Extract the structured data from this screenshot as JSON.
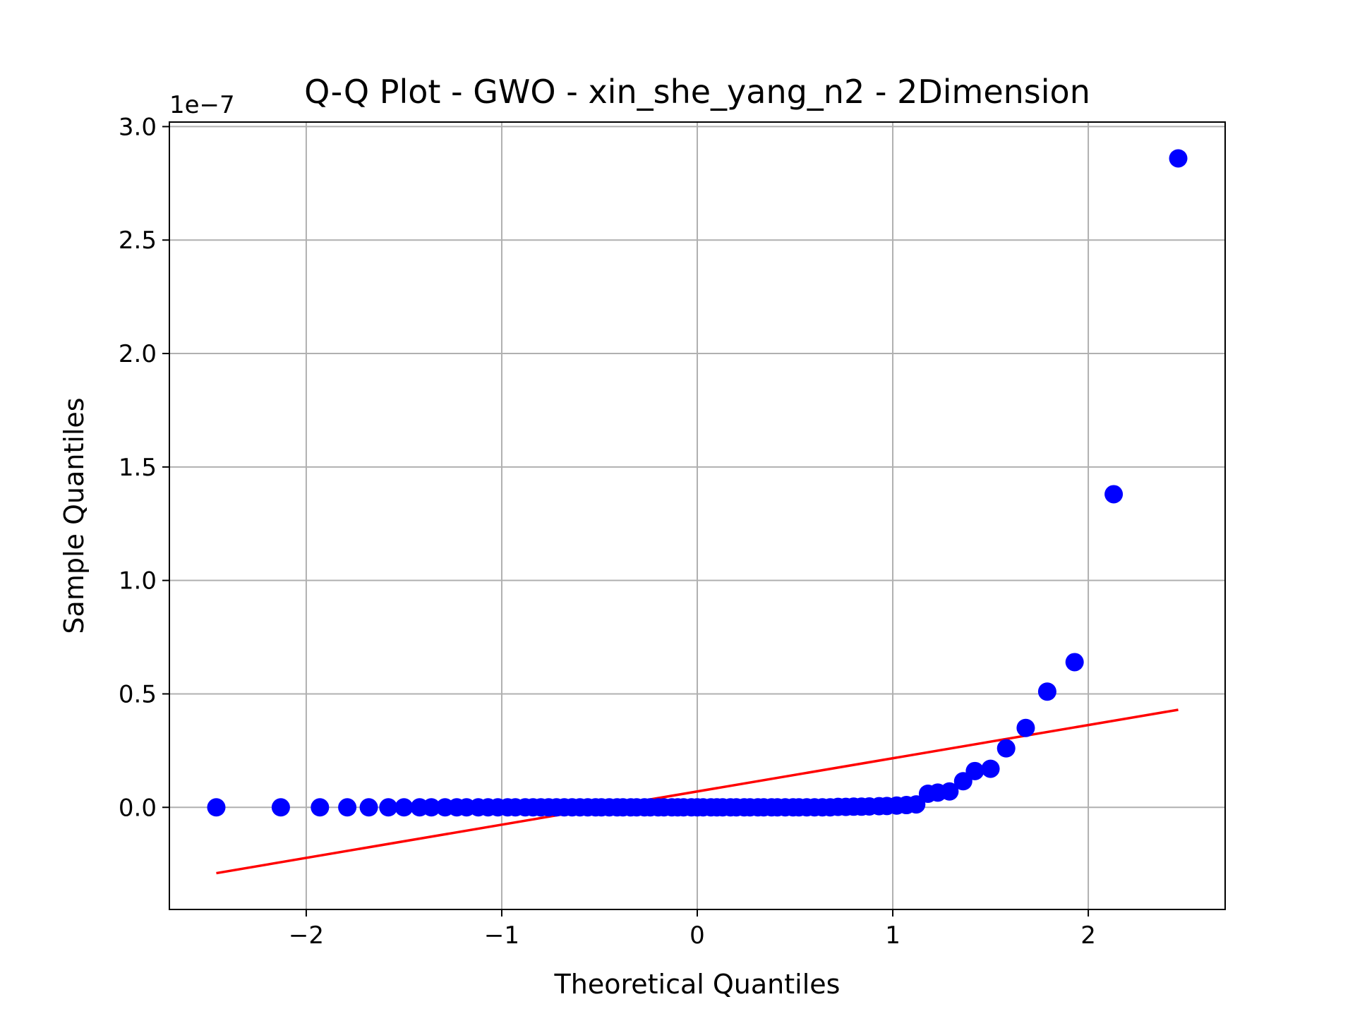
{
  "chart_data": {
    "type": "scatter",
    "title": "Q-Q Plot - GWO - xin_she_yang_n2 - 2Dimension",
    "xlabel": "Theoretical Quantiles",
    "ylabel": "Sample Quantiles",
    "y_offset_label": "1e−7",
    "xlim": [
      -2.7,
      2.7
    ],
    "ylim": [
      -0.45,
      3.02
    ],
    "x_ticks": [
      -2,
      -1,
      0,
      1,
      2
    ],
    "x_tick_labels": [
      "−2",
      "−1",
      "0",
      "1",
      "2"
    ],
    "y_ticks": [
      0.0,
      0.5,
      1.0,
      1.5,
      2.0,
      2.5,
      3.0
    ],
    "y_tick_labels": [
      "0.0",
      "0.5",
      "1.0",
      "1.5",
      "2.0",
      "2.5",
      "3.0"
    ],
    "grid": true,
    "marker_color": "#0000ff",
    "line_color": "#ff0000",
    "points": [
      [
        -2.46,
        0.0
      ],
      [
        -2.13,
        0.0
      ],
      [
        -1.93,
        0.0
      ],
      [
        -1.79,
        0.0
      ],
      [
        -1.68,
        0.0
      ],
      [
        -1.58,
        0.0
      ],
      [
        -1.5,
        0.0
      ],
      [
        -1.42,
        0.0
      ],
      [
        -1.36,
        0.0
      ],
      [
        -1.29,
        0.0
      ],
      [
        -1.23,
        0.0
      ],
      [
        -1.18,
        0.0
      ],
      [
        -1.12,
        0.0
      ],
      [
        -1.07,
        0.0
      ],
      [
        -1.02,
        0.0
      ],
      [
        -0.97,
        0.0
      ],
      [
        -0.93,
        0.0
      ],
      [
        -0.88,
        0.0
      ],
      [
        -0.84,
        0.0
      ],
      [
        -0.8,
        0.0
      ],
      [
        -0.76,
        0.0
      ],
      [
        -0.72,
        0.0
      ],
      [
        -0.68,
        0.0
      ],
      [
        -0.64,
        0.0
      ],
      [
        -0.6,
        0.0
      ],
      [
        -0.56,
        0.0
      ],
      [
        -0.52,
        0.0
      ],
      [
        -0.49,
        0.0
      ],
      [
        -0.45,
        0.0
      ],
      [
        -0.41,
        0.0
      ],
      [
        -0.38,
        0.0
      ],
      [
        -0.34,
        0.0
      ],
      [
        -0.31,
        0.0
      ],
      [
        -0.27,
        0.0
      ],
      [
        -0.24,
        0.0
      ],
      [
        -0.2,
        0.0
      ],
      [
        -0.17,
        0.0
      ],
      [
        -0.13,
        0.0
      ],
      [
        -0.1,
        0.0
      ],
      [
        -0.07,
        0.0
      ],
      [
        -0.03,
        0.0
      ],
      [
        0.0,
        0.0
      ],
      [
        0.03,
        0.0
      ],
      [
        0.07,
        0.0
      ],
      [
        0.1,
        0.0
      ],
      [
        0.13,
        0.0
      ],
      [
        0.17,
        0.0
      ],
      [
        0.2,
        0.0
      ],
      [
        0.24,
        0.0
      ],
      [
        0.27,
        0.0
      ],
      [
        0.31,
        0.0
      ],
      [
        0.34,
        0.0
      ],
      [
        0.38,
        0.0
      ],
      [
        0.41,
        0.0
      ],
      [
        0.45,
        0.0
      ],
      [
        0.49,
        0.0
      ],
      [
        0.52,
        0.0
      ],
      [
        0.56,
        0.0
      ],
      [
        0.6,
        0.0
      ],
      [
        0.64,
        0.0
      ],
      [
        0.68,
        0.0
      ],
      [
        0.72,
        0.002
      ],
      [
        0.76,
        0.002
      ],
      [
        0.8,
        0.003
      ],
      [
        0.84,
        0.003
      ],
      [
        0.88,
        0.004
      ],
      [
        0.93,
        0.005
      ],
      [
        0.97,
        0.006
      ],
      [
        1.02,
        0.008
      ],
      [
        1.07,
        0.01
      ],
      [
        1.12,
        0.013
      ],
      [
        1.18,
        0.06
      ],
      [
        1.23,
        0.065
      ],
      [
        1.29,
        0.07
      ],
      [
        1.36,
        0.115
      ],
      [
        1.42,
        0.16
      ],
      [
        1.5,
        0.17
      ],
      [
        1.58,
        0.26
      ],
      [
        1.68,
        0.35
      ],
      [
        1.79,
        0.51
      ],
      [
        1.93,
        0.64
      ],
      [
        2.13,
        1.38
      ],
      [
        2.46,
        2.86
      ]
    ],
    "fit_line": {
      "x": [
        -2.46,
        2.46
      ],
      "y": [
        -0.29,
        0.43
      ]
    }
  }
}
